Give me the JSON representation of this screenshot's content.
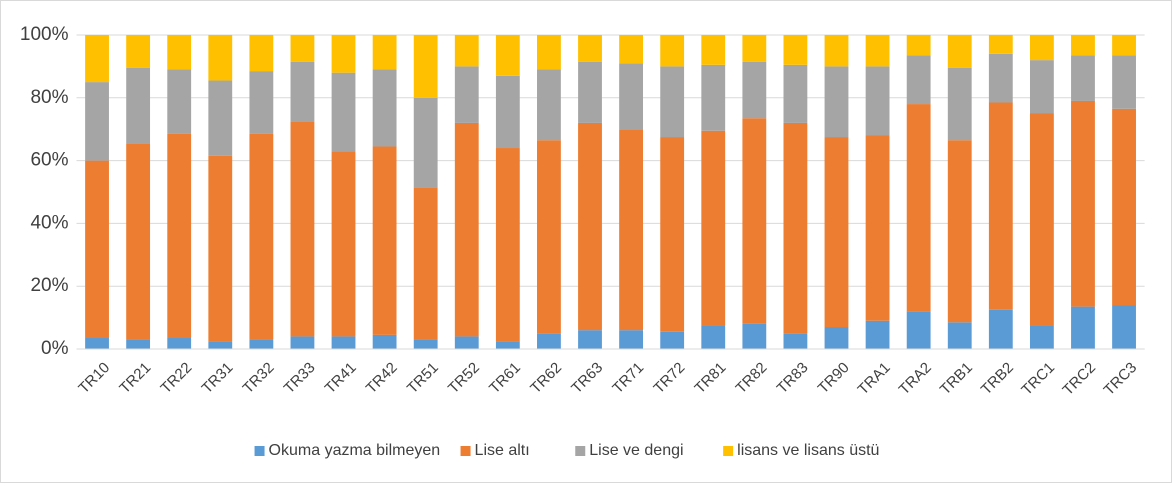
{
  "chart_data": {
    "type": "stacked_bar",
    "categories": [
      "TR10",
      "TR21",
      "TR22",
      "TR31",
      "TR32",
      "TR33",
      "TR41",
      "TR42",
      "TR51",
      "TR52",
      "TR61",
      "TR62",
      "TR63",
      "TR71",
      "TR72",
      "TR81",
      "TR82",
      "TR83",
      "TR90",
      "TRA1",
      "TRA2",
      "TRB1",
      "TRB2",
      "TRC1",
      "TRC2",
      "TRC3"
    ],
    "series": [
      {
        "name": "Okuma yazma bilmeyen",
        "color": "#5b9bd5",
        "values": [
          3.5,
          3,
          3.5,
          2.5,
          3,
          4,
          4,
          4.5,
          3,
          4,
          2.5,
          5,
          6,
          6,
          5.5,
          7.5,
          8,
          5,
          7,
          9,
          12,
          8.5,
          12.5,
          7.5,
          13.5,
          14
        ]
      },
      {
        "name": "Lise altı",
        "color": "#ed7d31",
        "values": [
          56.5,
          62.5,
          65,
          59,
          65.5,
          68.5,
          59,
          60,
          48.5,
          68,
          61.5,
          61.5,
          66,
          64,
          62,
          62,
          65.5,
          67,
          60.5,
          59,
          66,
          58,
          66,
          67.5,
          65.5,
          62.5
        ]
      },
      {
        "name": "Lise ve dengi",
        "color": "#a5a5a5",
        "values": [
          25,
          24,
          20.5,
          24,
          20,
          19,
          25,
          24.5,
          28.5,
          18,
          23,
          22.5,
          19.5,
          21,
          22.5,
          21,
          18,
          18.5,
          22.5,
          22,
          15.5,
          23,
          15.5,
          17,
          14.5,
          17
        ]
      },
      {
        "name": "lisans ve lisans üstü",
        "color": "#ffc000",
        "values": [
          15,
          10.5,
          11,
          14.5,
          11.5,
          8.5,
          12,
          11,
          20,
          10,
          13,
          11,
          8.5,
          9,
          10,
          9.5,
          8.5,
          9.5,
          10,
          10,
          6.5,
          10.5,
          6,
          8,
          6.5,
          6.5
        ]
      }
    ],
    "ylim": [
      0,
      100
    ],
    "yticks": [
      {
        "value": 0,
        "label": "0%"
      },
      {
        "value": 20,
        "label": "20%"
      },
      {
        "value": 40,
        "label": "40%"
      },
      {
        "value": 60,
        "label": "60%"
      },
      {
        "value": 80,
        "label": "80%"
      },
      {
        "value": 100,
        "label": "100%"
      }
    ],
    "grid": true,
    "legend": "bottom"
  }
}
